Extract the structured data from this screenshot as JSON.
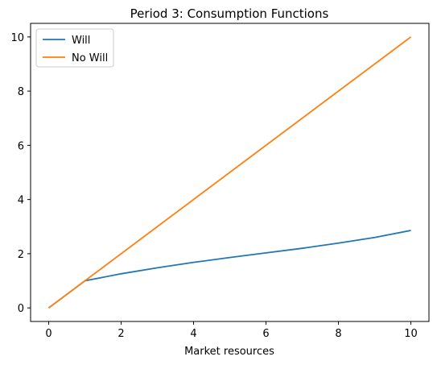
{
  "chart_data": {
    "type": "line",
    "title": "Period 3: Consumption Functions",
    "xlabel": "Market resources",
    "ylabel": "",
    "xlim": [
      -0.5,
      10.5
    ],
    "ylim": [
      -0.5,
      10.5
    ],
    "xticks": [
      0,
      2,
      4,
      6,
      8,
      10
    ],
    "yticks": [
      0,
      2,
      4,
      6,
      8,
      10
    ],
    "grid": false,
    "legend_position": "top-left",
    "series": [
      {
        "name": "Will",
        "color": "#1f77b4",
        "points": [
          [
            0,
            0
          ],
          [
            1,
            1
          ],
          [
            2,
            1.26
          ],
          [
            3,
            1.48
          ],
          [
            4,
            1.68
          ],
          [
            5,
            1.86
          ],
          [
            6,
            2.03
          ],
          [
            7,
            2.2
          ],
          [
            8,
            2.39
          ],
          [
            9,
            2.6
          ],
          [
            10,
            2.86
          ]
        ]
      },
      {
        "name": "No Will",
        "color": "#ff7f0e",
        "points": [
          [
            0,
            0
          ],
          [
            10,
            10
          ]
        ]
      }
    ]
  }
}
